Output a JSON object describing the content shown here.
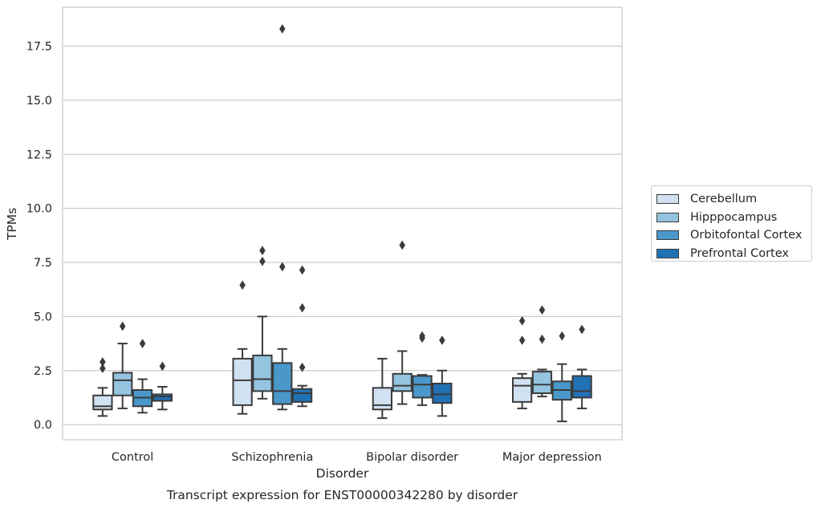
{
  "chart_data": {
    "type": "box",
    "title": "Transcript expression for ENST00000342280 by disorder",
    "xlabel": "Disorder",
    "ylabel": "TPMs",
    "ylim": [
      -0.7,
      19.3
    ],
    "yticks": [
      "0.0",
      "2.5",
      "5.0",
      "7.5",
      "10.0",
      "12.5",
      "15.0",
      "17.5"
    ],
    "ytick_values": [
      0,
      2.5,
      5,
      7.5,
      10,
      12.5,
      15,
      17.5
    ],
    "categories": [
      "Control",
      "Schizophrenia",
      "Bipolar disorder",
      "Major depression"
    ],
    "grid": "horizontal",
    "legend_position": "right",
    "series": [
      {
        "name": "Cerebellum",
        "color": "#d0e1f2",
        "boxes": [
          {
            "whisker_low": 0.4,
            "q1": 0.7,
            "median": 0.85,
            "q3": 1.35,
            "whisker_high": 1.7,
            "outliers": [
              2.6,
              2.9
            ]
          },
          {
            "whisker_low": 0.5,
            "q1": 0.9,
            "median": 2.05,
            "q3": 3.05,
            "whisker_high": 3.5,
            "outliers": [
              6.45
            ]
          },
          {
            "whisker_low": 0.3,
            "q1": 0.7,
            "median": 0.9,
            "q3": 1.7,
            "whisker_high": 3.05,
            "outliers": []
          },
          {
            "whisker_low": 0.75,
            "q1": 1.05,
            "median": 1.8,
            "q3": 2.15,
            "whisker_high": 2.35,
            "outliers": [
              3.9,
              4.8
            ]
          }
        ]
      },
      {
        "name": "Hipppocampus",
        "color": "#94c4df",
        "boxes": [
          {
            "whisker_low": 0.75,
            "q1": 1.35,
            "median": 2.05,
            "q3": 2.4,
            "whisker_high": 3.75,
            "outliers": [
              4.55
            ]
          },
          {
            "whisker_low": 1.2,
            "q1": 1.55,
            "median": 2.1,
            "q3": 3.2,
            "whisker_high": 5.0,
            "outliers": [
              7.55,
              8.05
            ]
          },
          {
            "whisker_low": 0.95,
            "q1": 1.55,
            "median": 1.8,
            "q3": 2.35,
            "whisker_high": 3.4,
            "outliers": [
              8.3
            ]
          },
          {
            "whisker_low": 1.3,
            "q1": 1.45,
            "median": 1.85,
            "q3": 2.45,
            "whisker_high": 2.55,
            "outliers": [
              3.95,
              5.3
            ]
          }
        ]
      },
      {
        "name": "Orbitofontal Cortex",
        "color": "#4a98c9",
        "boxes": [
          {
            "whisker_low": 0.55,
            "q1": 0.85,
            "median": 1.25,
            "q3": 1.6,
            "whisker_high": 2.1,
            "outliers": [
              3.75
            ]
          },
          {
            "whisker_low": 0.7,
            "q1": 0.95,
            "median": 1.55,
            "q3": 2.85,
            "whisker_high": 3.5,
            "outliers": [
              7.3,
              18.3
            ]
          },
          {
            "whisker_low": 0.9,
            "q1": 1.25,
            "median": 1.85,
            "q3": 2.25,
            "whisker_high": 2.3,
            "outliers": [
              4.0,
              4.1
            ]
          },
          {
            "whisker_low": 0.15,
            "q1": 1.15,
            "median": 1.6,
            "q3": 2.0,
            "whisker_high": 2.8,
            "outliers": [
              4.1
            ]
          }
        ]
      },
      {
        "name": "Prefrontal Cortex",
        "color": "#2171b5",
        "boxes": [
          {
            "whisker_low": 0.7,
            "q1": 1.1,
            "median": 1.3,
            "q3": 1.4,
            "whisker_high": 1.75,
            "outliers": [
              2.7
            ]
          },
          {
            "whisker_low": 0.85,
            "q1": 1.05,
            "median": 1.45,
            "q3": 1.65,
            "whisker_high": 1.8,
            "outliers": [
              2.65,
              5.4,
              7.15
            ]
          },
          {
            "whisker_low": 0.4,
            "q1": 1.0,
            "median": 1.4,
            "q3": 1.9,
            "whisker_high": 2.5,
            "outliers": [
              3.9
            ]
          },
          {
            "whisker_low": 0.75,
            "q1": 1.25,
            "median": 1.55,
            "q3": 2.25,
            "whisker_high": 2.55,
            "outliers": [
              4.4
            ]
          }
        ]
      }
    ]
  }
}
